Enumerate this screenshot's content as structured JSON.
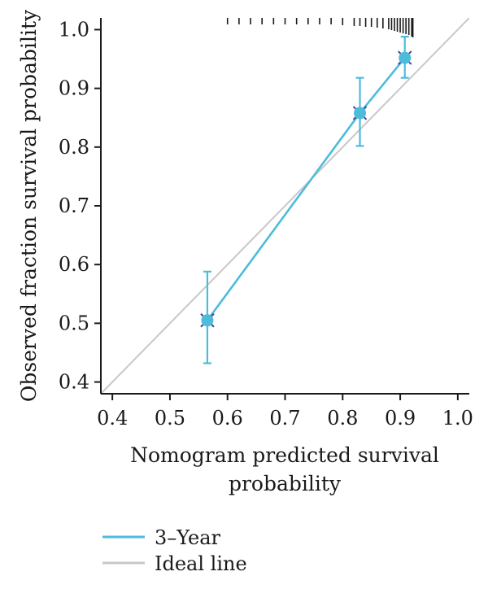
{
  "chart_data": {
    "type": "line",
    "xlabel_lines": [
      "Nomogram predicted survival",
      "probability"
    ],
    "ylabel": "Observed fraction survival probability",
    "xlim": [
      0.38,
      1.02
    ],
    "ylim": [
      0.38,
      1.02
    ],
    "x_ticks": [
      0.4,
      0.5,
      0.6,
      0.7,
      0.8,
      0.9,
      1.0
    ],
    "x_tick_labels": [
      "0.4",
      "0.5",
      "0.6",
      "0.7",
      "0.8",
      "0.9",
      "1.0"
    ],
    "y_ticks": [
      0.4,
      0.5,
      0.6,
      0.7,
      0.8,
      0.9,
      1.0
    ],
    "y_tick_labels": [
      "0.4",
      "0.5",
      "0.6",
      "0.7",
      "0.8",
      "0.9",
      "1.0"
    ],
    "grid": false,
    "legend_position": "bottom-left",
    "series": [
      {
        "name": "3–Year",
        "color": "#4dbcdb",
        "x": [
          0.565,
          0.83,
          0.908
        ],
        "y": [
          0.505,
          0.858,
          0.952
        ],
        "err_low": [
          0.432,
          0.802,
          0.918
        ],
        "err_high": [
          0.588,
          0.918,
          0.988
        ]
      }
    ],
    "ideal_line": {
      "name": "Ideal line",
      "color": "#c8c8c8",
      "from": [
        0.38,
        0.38
      ],
      "to": [
        1.02,
        1.02
      ]
    },
    "cross_marker_color": "#4a3f9a",
    "rug": {
      "color": "#1a1a1a",
      "x": [
        0.6,
        0.62,
        0.64,
        0.66,
        0.68,
        0.7,
        0.72,
        0.74,
        0.76,
        0.78,
        0.8,
        0.82,
        0.83,
        0.84,
        0.85,
        0.86,
        0.87,
        0.88,
        0.885,
        0.89,
        0.895,
        0.9,
        0.905,
        0.91,
        0.915,
        0.92,
        0.922
      ],
      "heights": [
        0.2,
        0.2,
        0.2,
        0.2,
        0.2,
        0.2,
        0.2,
        0.2,
        0.2,
        0.2,
        0.25,
        0.3,
        0.3,
        0.35,
        0.35,
        0.4,
        0.45,
        0.5,
        0.55,
        0.6,
        0.65,
        0.7,
        0.75,
        0.8,
        0.85,
        0.95,
        1.0
      ]
    }
  }
}
